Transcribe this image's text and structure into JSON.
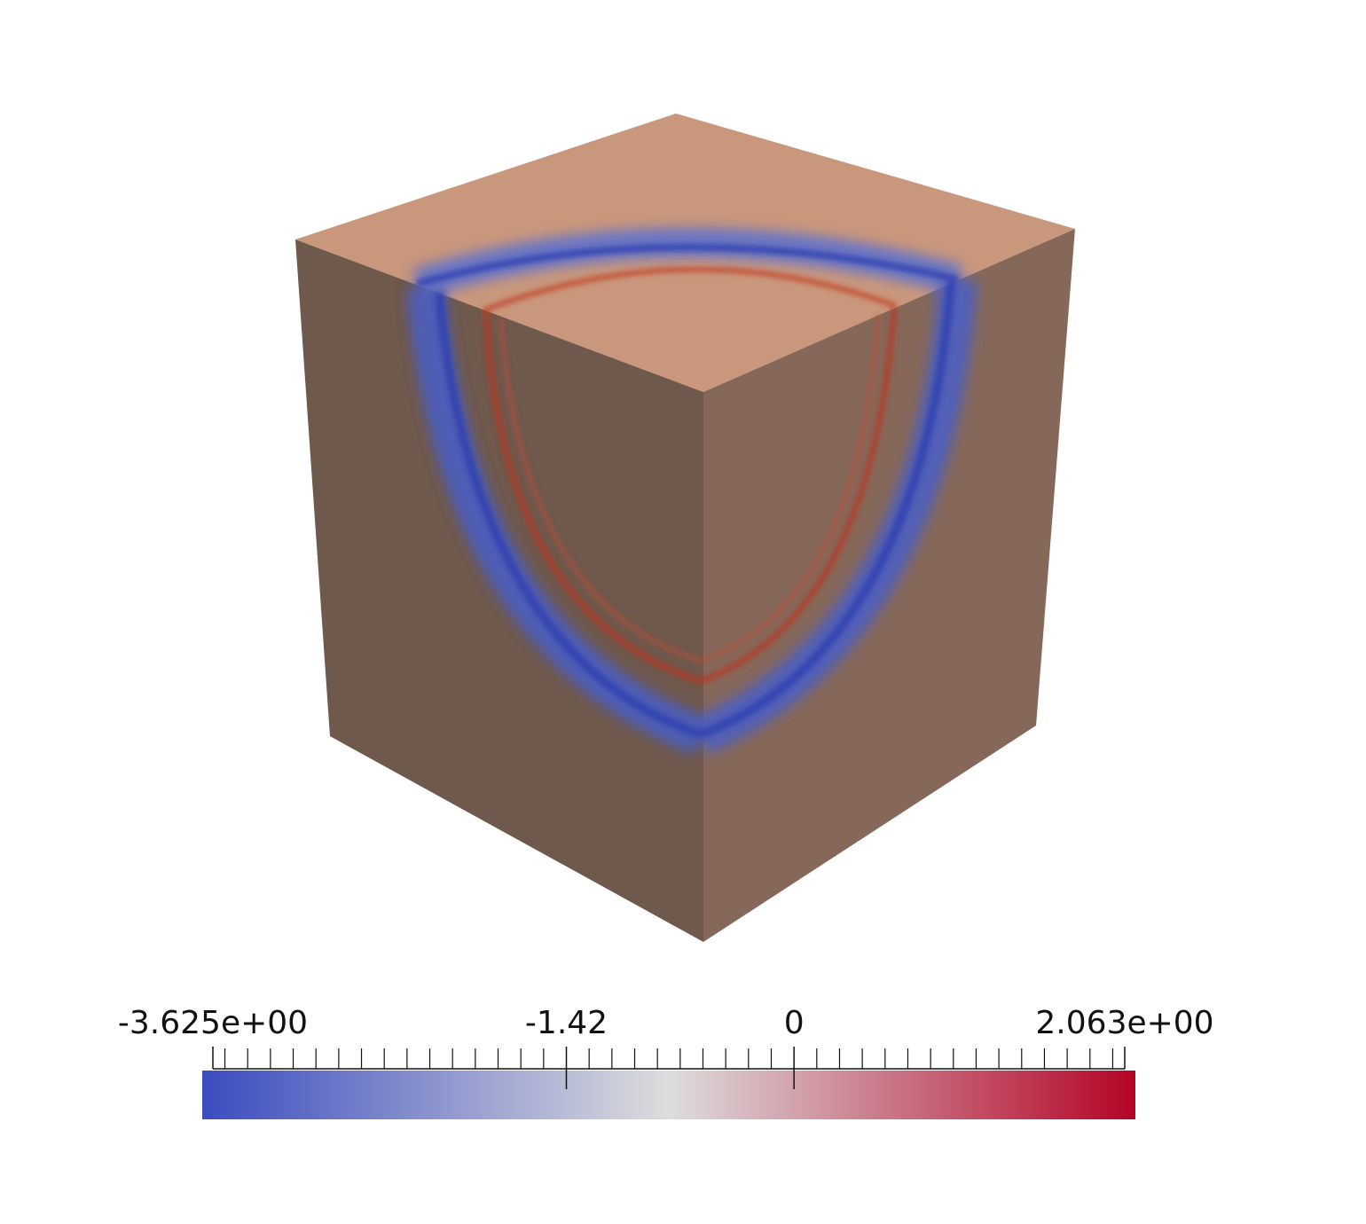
{
  "colorbar": {
    "range": [
      -3.625,
      2.063
    ],
    "ticks": [
      {
        "value": -3.625,
        "label": "-3.625e+00"
      },
      -1.42,
      0,
      {
        "value": 2.063,
        "label": "2.063e+00"
      }
    ],
    "minor_tick_step": 0.142,
    "colors": [
      "#3b4cc0",
      "#dddddd",
      "#b40426"
    ]
  }
}
